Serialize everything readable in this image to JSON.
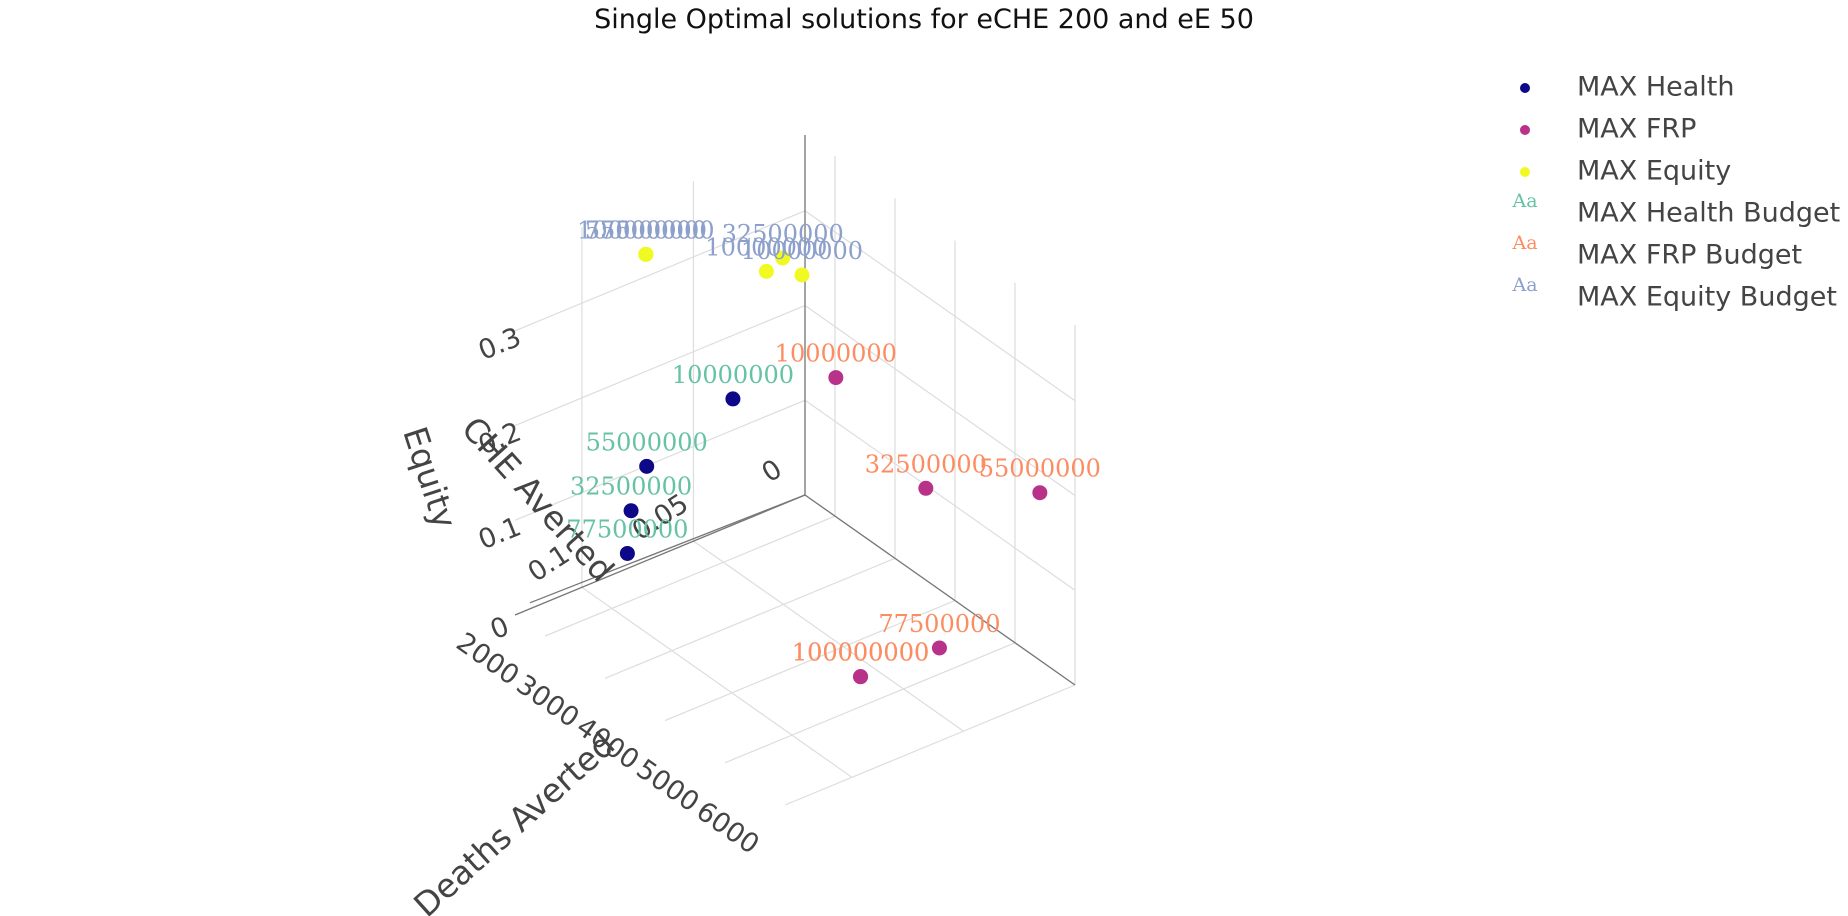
{
  "chart_data": {
    "type": "scatter",
    "projection": "3d",
    "title": "Single Optimal solutions for eCHE 200 and eE 50",
    "axes": {
      "x": {
        "label": "Deaths Averted",
        "ticks": [
          "2000",
          "3000",
          "4000",
          "5000",
          "6000"
        ],
        "range": [
          1500,
          6000
        ]
      },
      "y": {
        "label": "CHE Averted",
        "ticks": [
          "0",
          "0.05",
          "0.1"
        ],
        "range": [
          0,
          0.13
        ]
      },
      "z": {
        "label": "Equity",
        "ticks": [
          "0",
          "0.1",
          "0.2",
          "0.3"
        ],
        "range": [
          0,
          0.38
        ]
      }
    },
    "series": [
      {
        "name": "MAX Health",
        "color": "#0d0887",
        "points": [
          {
            "x": 1600,
            "y": 0.035,
            "z": 0.14,
            "budget": "10000000"
          },
          {
            "x": 1650,
            "y": 0.075,
            "z": 0.11,
            "budget": "55000000"
          },
          {
            "x": 1650,
            "y": 0.082,
            "z": 0.07,
            "budget": "32500000"
          },
          {
            "x": 1700,
            "y": 0.085,
            "z": 0.03,
            "budget": "77500000"
          }
        ]
      },
      {
        "name": "MAX FRP",
        "color": "#b83289",
        "points": [
          {
            "x": 2200,
            "y": 0.005,
            "z": 0.16,
            "budget": "10000000"
          },
          {
            "x": 3700,
            "y": 0.005,
            "z": 0.11,
            "budget": "32500000"
          },
          {
            "x": 5600,
            "y": 0.005,
            "z": 0.19,
            "budget": "55000000"
          },
          {
            "x": 5600,
            "y": 0.05,
            "z": 0.07,
            "budget": "77500000"
          },
          {
            "x": 5400,
            "y": 0.08,
            "z": 0.06,
            "budget": "100000000"
          },
          {
            "x": 5400,
            "y": 0.08,
            "z": 0.06,
            "budget": "100000000"
          }
        ]
      },
      {
        "name": "MAX Equity",
        "color": "#f0f921",
        "points": [
          {
            "x": 1450,
            "y": 0.0,
            "z": 0.23,
            "budget": "10000000"
          },
          {
            "x": 1500,
            "y": 0.01,
            "z": 0.26,
            "budget": "32500000"
          },
          {
            "x": 1450,
            "y": 0.07,
            "z": 0.32,
            "budget": "55000000"
          },
          {
            "x": 1450,
            "y": 0.07,
            "z": 0.32,
            "budget": "77500000"
          },
          {
            "x": 1450,
            "y": 0.07,
            "z": 0.32,
            "budget": "100000000"
          },
          {
            "x": 1600,
            "y": 0.02,
            "z": 0.26,
            "budget": "10000000"
          }
        ]
      }
    ],
    "label_series": [
      {
        "name": "MAX Health Budget",
        "color": "#66c2a5"
      },
      {
        "name": "MAX FRP Budget",
        "color": "#fc8d62"
      },
      {
        "name": "MAX Equity Budget",
        "color": "#8da0cb"
      }
    ],
    "legend_placement": "top-right",
    "grid": true
  },
  "legend_marker_glyph": "Aa"
}
